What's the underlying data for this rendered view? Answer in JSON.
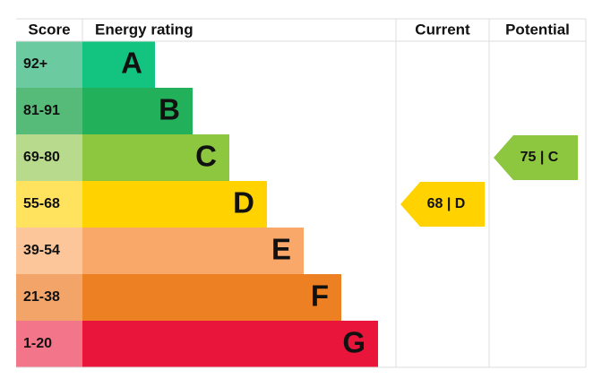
{
  "header": {
    "score": "Score",
    "energy_rating": "Energy rating",
    "current": "Current",
    "potential": "Potential"
  },
  "bands": [
    {
      "score": "92+",
      "letter": "A"
    },
    {
      "score": "81-91",
      "letter": "B"
    },
    {
      "score": "69-80",
      "letter": "C"
    },
    {
      "score": "55-68",
      "letter": "D"
    },
    {
      "score": "39-54",
      "letter": "E"
    },
    {
      "score": "21-38",
      "letter": "F"
    },
    {
      "score": "1-20",
      "letter": "G"
    }
  ],
  "current": {
    "label": "68 | D"
  },
  "potential": {
    "label": "75 | C"
  }
}
